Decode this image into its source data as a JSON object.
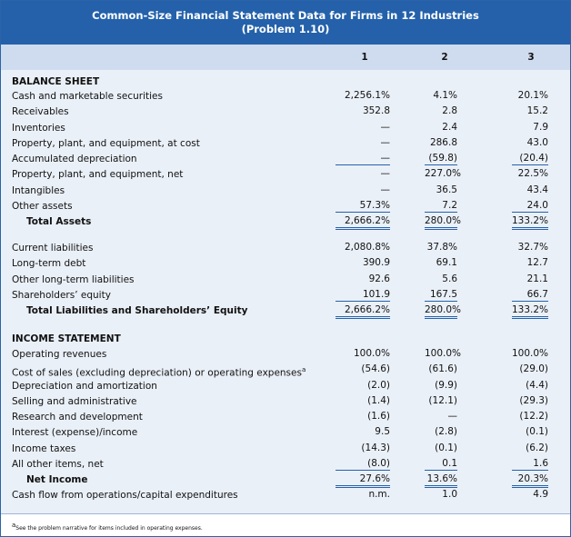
{
  "header": {
    "title": "Common-Size Financial Statement Data for Firms in 12 Industries",
    "subtitle": "(Problem 1.10)"
  },
  "table": {
    "columns": [
      "1",
      "2",
      "3"
    ],
    "sections": [
      {
        "title": "BALANCE SHEET",
        "rows": [
          [
            "Cash and marketable securities",
            "2,256.1%",
            "4.1%",
            "20.1%"
          ],
          [
            "Receivables",
            "352.8",
            "2.8",
            "15.2"
          ],
          [
            "Inventories",
            "—",
            "2.4",
            "7.9"
          ],
          [
            "Property, plant, and equipment, at cost",
            "—",
            "286.8",
            "43.0"
          ],
          [
            "Accumulated depreciation",
            "—",
            "(59.8)",
            "(20.4)"
          ],
          [
            "Property, plant, and equipment, net",
            "—",
            "227.0%",
            "22.5%"
          ],
          [
            "Intangibles",
            "—",
            "36.5",
            "43.4"
          ],
          [
            "Other assets",
            "57.3%",
            "7.2",
            "24.0"
          ],
          [
            "Total Assets",
            "2,666.2%",
            "280.0%",
            "133.2%"
          ]
        ]
      },
      {
        "rows": [
          [
            "Current liabilities",
            "2,080.8%",
            "37.8%",
            "32.7%"
          ],
          [
            "Long-term debt",
            "390.9",
            "69.1",
            "12.7"
          ],
          [
            "Other long-term liabilities",
            "92.6",
            "5.6",
            "21.1"
          ],
          [
            "Shareholders’ equity",
            "101.9",
            "167.5",
            "66.7"
          ],
          [
            "Total Liabilities and Shareholders’ Equity",
            "2,666.2%",
            "280.0%",
            "133.2%"
          ]
        ]
      },
      {
        "title": "INCOME STATEMENT",
        "rows": [
          [
            "Operating revenues",
            "100.0%",
            "100.0%",
            "100.0%"
          ],
          [
            "Cost of sales (excluding depreciation) or operating expenses",
            "(54.6)",
            "(61.6)",
            "(29.0)"
          ],
          [
            "Depreciation and amortization",
            "(2.0)",
            "(9.9)",
            "(4.4)"
          ],
          [
            "Selling and administrative",
            "(1.4)",
            "(12.1)",
            "(29.3)"
          ],
          [
            "Research and development",
            "(1.6)",
            "—",
            "(12.2)"
          ],
          [
            "Interest (expense)/income",
            "9.5",
            "(2.8)",
            "(0.1)"
          ],
          [
            "Income taxes",
            "(14.3)",
            "(0.1)",
            "(6.2)"
          ],
          [
            "All other items, net",
            "(8.0)",
            "0.1",
            "1.6"
          ],
          [
            "Net Income",
            "27.6%",
            "13.6%",
            "20.3%"
          ],
          [
            "Cash flow from operations/capital expenditures",
            "n.m.",
            "1.0",
            "4.9"
          ]
        ]
      }
    ]
  },
  "note_marker": "a",
  "footnote": "See the problem narrative for items included in operating expenses."
}
